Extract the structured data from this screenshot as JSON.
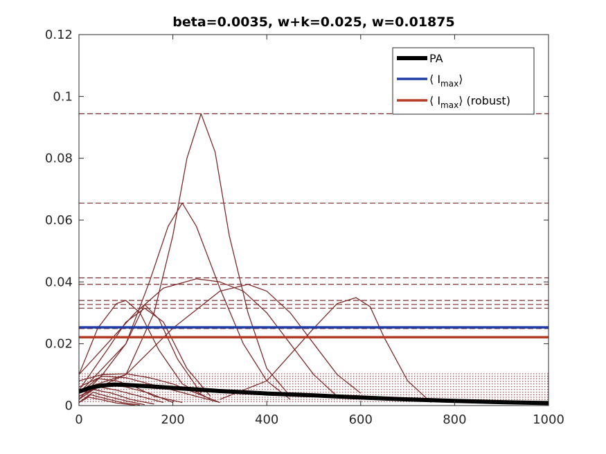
{
  "chart_data": {
    "type": "line",
    "title": "beta=0.0035, w+k=0.025, w=0.01875",
    "xlabel": "",
    "ylabel": "",
    "xlim": [
      0,
      1000
    ],
    "ylim": [
      0,
      0.12
    ],
    "xticks": [
      0,
      200,
      400,
      600,
      800,
      1000
    ],
    "xtick_labels": [
      "0",
      "200",
      "400",
      "600",
      "800",
      "1000"
    ],
    "yticks": [
      0,
      0.02,
      0.04,
      0.06,
      0.08,
      0.1,
      0.12
    ],
    "ytick_labels": [
      "0",
      "0.02",
      "0.04",
      "0.06",
      "0.08",
      "0.1",
      "0.12"
    ],
    "grid": false,
    "legend_position": "top-right",
    "legend": [
      {
        "label": "PA",
        "color": "#000000"
      },
      {
        "label": "⟨ I",
        "sub": "max",
        "suffix": "⟩",
        "color": "#1f3ca6"
      },
      {
        "label": "⟨ I",
        "sub": "max",
        "suffix": "⟩ (robust)",
        "color": "#b33a24"
      }
    ],
    "reference_lines": {
      "mean_Imax": 0.0253,
      "mean_Imax_robust": 0.0221,
      "dashed_peaks": [
        0.0944,
        0.0655,
        0.0413,
        0.0392,
        0.034,
        0.0327,
        0.0315,
        0.0249
      ],
      "dotted_peaks": [
        0.0103,
        0.0095,
        0.0087,
        0.0078,
        0.007,
        0.0061,
        0.0052,
        0.0043,
        0.0035,
        0.0027,
        0.002,
        0.0013
      ]
    },
    "series": [
      {
        "name": "PA",
        "color": "#000000",
        "x": [
          0,
          25,
          50,
          75,
          100,
          150,
          200,
          250,
          300,
          350,
          400,
          500,
          600,
          700,
          800,
          900,
          1000
        ],
        "values": [
          0.0045,
          0.0058,
          0.0065,
          0.0068,
          0.0067,
          0.0062,
          0.0057,
          0.0052,
          0.0047,
          0.0043,
          0.0039,
          0.0033,
          0.0026,
          0.002,
          0.0015,
          0.0011,
          0.0008
        ]
      },
      {
        "color": "#7a2a2a",
        "x": [
          0,
          100,
          160,
          200,
          230,
          260,
          290,
          320,
          360,
          400,
          450
        ],
        "values": [
          0.005,
          0.01,
          0.03,
          0.055,
          0.08,
          0.0944,
          0.082,
          0.055,
          0.03,
          0.012,
          0.003
        ]
      },
      {
        "color": "#7a2a2a",
        "x": [
          0,
          100,
          150,
          190,
          220,
          250,
          300,
          350,
          400,
          450
        ],
        "values": [
          0.004,
          0.02,
          0.04,
          0.058,
          0.0655,
          0.058,
          0.038,
          0.02,
          0.008,
          0.002
        ]
      },
      {
        "color": "#7a2a2a",
        "x": [
          0,
          60,
          120,
          180,
          250,
          300,
          350,
          400,
          450,
          500,
          550
        ],
        "values": [
          0.01,
          0.02,
          0.03,
          0.038,
          0.041,
          0.04,
          0.037,
          0.03,
          0.02,
          0.01,
          0.003
        ]
      },
      {
        "color": "#7a2a2a",
        "x": [
          0,
          100,
          200,
          300,
          360,
          400,
          450,
          500,
          550,
          600
        ],
        "values": [
          0.003,
          0.01,
          0.025,
          0.037,
          0.0392,
          0.037,
          0.03,
          0.02,
          0.01,
          0.004
        ]
      },
      {
        "color": "#7a2a2a",
        "x": [
          300,
          400,
          500,
          550,
          590,
          620,
          650,
          700,
          750
        ],
        "values": [
          0.002,
          0.008,
          0.025,
          0.033,
          0.0349,
          0.032,
          0.022,
          0.008,
          0.001
        ]
      },
      {
        "color": "#7a2a2a",
        "x": [
          0,
          40,
          80,
          100,
          130,
          170,
          220,
          280
        ],
        "values": [
          0.01,
          0.025,
          0.033,
          0.034,
          0.03,
          0.018,
          0.007,
          0.002
        ]
      },
      {
        "color": "#7a2a2a",
        "x": [
          0,
          60,
          100,
          140,
          180,
          230,
          280
        ],
        "values": [
          0.005,
          0.018,
          0.027,
          0.0315,
          0.027,
          0.012,
          0.003
        ]
      },
      {
        "color": "#7a2a2a",
        "x": [
          0,
          50,
          100,
          140,
          170,
          210,
          260
        ],
        "values": [
          0.002,
          0.01,
          0.02,
          0.0327,
          0.028,
          0.015,
          0.004
        ]
      },
      {
        "color": "#7a2a2a",
        "x": [
          0,
          50,
          100,
          150,
          200,
          250,
          300
        ],
        "values": [
          0.008,
          0.01,
          0.0103,
          0.009,
          0.007,
          0.004,
          0.001
        ]
      },
      {
        "color": "#7a2a2a",
        "x": [
          0,
          50,
          100,
          150,
          200,
          250,
          300
        ],
        "values": [
          0.006,
          0.0095,
          0.009,
          0.007,
          0.005,
          0.003,
          0.001
        ]
      },
      {
        "color": "#7a2a2a",
        "x": [
          0,
          40,
          80,
          120,
          160,
          220
        ],
        "values": [
          0.004,
          0.0087,
          0.008,
          0.006,
          0.003,
          0.001
        ]
      },
      {
        "color": "#7a2a2a",
        "x": [
          0,
          50,
          100,
          150,
          200
        ],
        "values": [
          0.003,
          0.007,
          0.006,
          0.004,
          0.001
        ]
      },
      {
        "color": "#7a2a2a",
        "x": [
          0,
          40,
          80,
          130,
          180
        ],
        "values": [
          0.002,
          0.0061,
          0.005,
          0.003,
          0.001
        ]
      },
      {
        "color": "#7a2a2a",
        "x": [
          0,
          30,
          70,
          110,
          160
        ],
        "values": [
          0.002,
          0.0052,
          0.004,
          0.002,
          0.0005
        ]
      },
      {
        "color": "#7a2a2a",
        "x": [
          0,
          30,
          60,
          100,
          140
        ],
        "values": [
          0.001,
          0.0043,
          0.003,
          0.0015,
          0.0003
        ]
      },
      {
        "color": "#7a2a2a",
        "x": [
          0,
          25,
          50,
          90,
          130
        ],
        "values": [
          0.001,
          0.0035,
          0.0025,
          0.001,
          0.0002
        ]
      },
      {
        "color": "#7a2a2a",
        "x": [
          0,
          20,
          45,
          80,
          120
        ],
        "values": [
          0.001,
          0.0027,
          0.002,
          0.0008,
          0.0001
        ]
      }
    ]
  }
}
